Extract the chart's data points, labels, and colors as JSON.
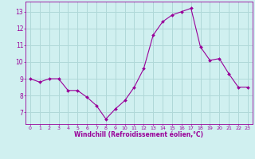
{
  "x": [
    0,
    1,
    2,
    3,
    4,
    5,
    6,
    7,
    8,
    9,
    10,
    11,
    12,
    13,
    14,
    15,
    16,
    17,
    18,
    19,
    20,
    21,
    22,
    23
  ],
  "y": [
    9.0,
    8.8,
    9.0,
    9.0,
    8.3,
    8.3,
    7.9,
    7.4,
    6.6,
    7.2,
    7.7,
    8.5,
    9.6,
    11.6,
    12.4,
    12.8,
    13.0,
    13.2,
    10.9,
    10.1,
    10.2,
    9.3,
    8.5,
    8.5
  ],
  "line_color": "#990099",
  "marker_color": "#990099",
  "bg_color": "#d0f0f0",
  "grid_color": "#b0d8d8",
  "xlabel": "Windchill (Refroidissement éolien,°C)",
  "xlabel_color": "#990099",
  "yticks": [
    7,
    8,
    9,
    10,
    11,
    12,
    13
  ],
  "xticks": [
    0,
    1,
    2,
    3,
    4,
    5,
    6,
    7,
    8,
    9,
    10,
    11,
    12,
    13,
    14,
    15,
    16,
    17,
    18,
    19,
    20,
    21,
    22,
    23
  ],
  "ylim": [
    6.3,
    13.6
  ],
  "xlim": [
    -0.5,
    23.5
  ],
  "tick_color": "#990099",
  "spine_color": "#990099"
}
